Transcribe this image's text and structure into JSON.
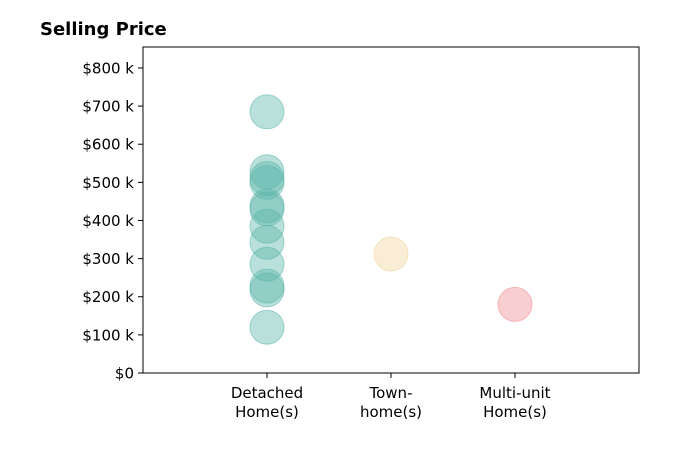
{
  "chart_data": {
    "type": "scatter",
    "title": "Selling Price",
    "xlabel": "",
    "ylabel": "",
    "categories": [
      "Detached\nHome(s)",
      "Town-\nhome(s)",
      "Multi-unit\nHome(s)"
    ],
    "ylim": [
      0,
      855
    ],
    "yticks": [
      0,
      100,
      200,
      300,
      400,
      500,
      600,
      700,
      800
    ],
    "ytick_labels": [
      "$0",
      "$100 k",
      "$200 k",
      "$300 k",
      "$400 k",
      "$500 k",
      "$600 k",
      "$700 k",
      "$800 k"
    ],
    "grid": false,
    "series": [
      {
        "category": "Detached\nHome(s)",
        "color": "#5bb5aa",
        "values": [
          685,
          528,
          510,
          500,
          438,
          430,
          385,
          343,
          285,
          228,
          218,
          120
        ]
      },
      {
        "category": "Town-\nhome(s)",
        "color": "#f0d49a",
        "values": [
          312
        ]
      },
      {
        "category": "Multi-unit\nHome(s)",
        "color": "#ef8a8f",
        "values": [
          180
        ]
      }
    ]
  }
}
